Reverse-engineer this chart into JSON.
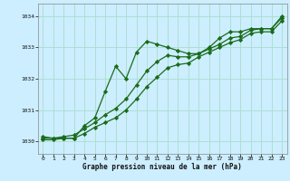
{
  "xlabel": "Graphe pression niveau de la mer (hPa)",
  "background_color": "#cceeff",
  "grid_color": "#aaddcc",
  "line_color": "#1a6b1a",
  "xlim": [
    -0.5,
    23.5
  ],
  "ylim": [
    1029.6,
    1034.4
  ],
  "yticks": [
    1030,
    1031,
    1032,
    1033,
    1034
  ],
  "xticks": [
    0,
    1,
    2,
    3,
    4,
    5,
    6,
    7,
    8,
    9,
    10,
    11,
    12,
    13,
    14,
    15,
    16,
    17,
    18,
    19,
    20,
    21,
    22,
    23
  ],
  "series": [
    {
      "x": [
        0,
        1,
        2,
        3,
        4,
        5,
        6,
        7,
        8,
        9,
        10,
        11,
        12,
        13,
        14,
        15,
        16,
        17,
        18,
        19,
        20,
        21,
        22,
        23
      ],
      "y": [
        1030.15,
        1030.1,
        1030.1,
        1030.1,
        1030.5,
        1030.75,
        1031.6,
        1032.4,
        1032.0,
        1032.85,
        1033.2,
        1033.1,
        1033.0,
        1032.9,
        1032.8,
        1032.8,
        1033.0,
        1033.3,
        1033.5,
        1033.5,
        1033.6,
        1033.6,
        1033.6,
        1034.0
      ]
    },
    {
      "x": [
        0,
        1,
        2,
        3,
        4,
        5,
        6,
        7,
        8,
        9,
        10,
        11,
        12,
        13,
        14,
        15,
        16,
        17,
        18,
        19,
        20,
        21,
        22,
        23
      ],
      "y": [
        1030.1,
        1030.1,
        1030.15,
        1030.2,
        1030.4,
        1030.6,
        1030.85,
        1031.05,
        1031.35,
        1031.8,
        1032.25,
        1032.55,
        1032.75,
        1032.7,
        1032.7,
        1032.8,
        1032.95,
        1033.1,
        1033.3,
        1033.35,
        1033.55,
        1033.6,
        1033.6,
        1033.95
      ]
    },
    {
      "x": [
        0,
        1,
        2,
        3,
        4,
        5,
        6,
        7,
        8,
        9,
        10,
        11,
        12,
        13,
        14,
        15,
        16,
        17,
        18,
        19,
        20,
        21,
        22,
        23
      ],
      "y": [
        1030.05,
        1030.05,
        1030.1,
        1030.1,
        1030.25,
        1030.45,
        1030.6,
        1030.75,
        1031.0,
        1031.35,
        1031.75,
        1032.05,
        1032.35,
        1032.45,
        1032.5,
        1032.7,
        1032.85,
        1033.0,
        1033.15,
        1033.25,
        1033.45,
        1033.5,
        1033.5,
        1033.85
      ]
    }
  ]
}
